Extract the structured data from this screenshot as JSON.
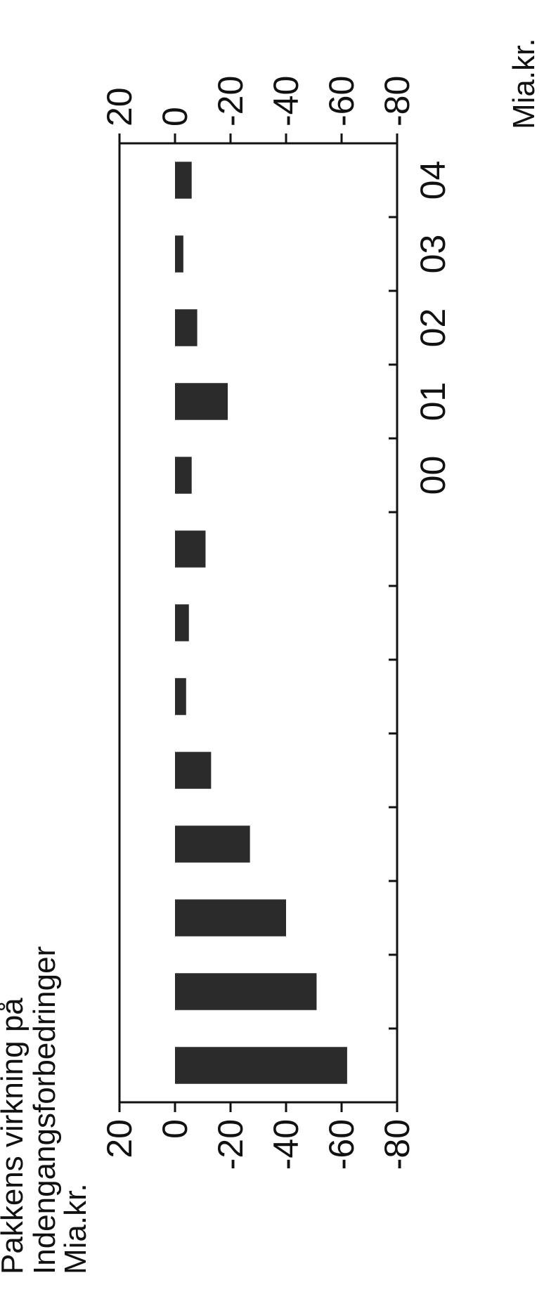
{
  "chart_data": {
    "type": "bar",
    "title_lines": [
      "Pakkens virkning på",
      "Indengangsforbedringer"
    ],
    "left_unit": "Mia.kr.",
    "right_unit": "Mia.kr.",
    "ylim": [
      -80,
      20
    ],
    "yticks": [
      20,
      0,
      -20,
      -40,
      -60,
      -80
    ],
    "ytick_labels": [
      "20",
      "0",
      "-20",
      "-40",
      "-60",
      "-80"
    ],
    "visible_categories": [
      "00",
      "01",
      "02",
      "03",
      "04"
    ],
    "values": [
      -62,
      -51,
      -40,
      -27,
      -13,
      -4,
      -5,
      -11,
      -6,
      -19,
      -8,
      -3,
      -6
    ],
    "bar_color": "#2b2b2b",
    "grid": false
  }
}
